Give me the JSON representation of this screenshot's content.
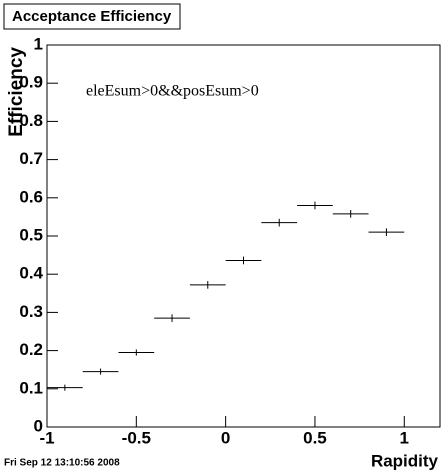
{
  "chart_data": {
    "type": "histogram",
    "title": "Acceptance Efficiency",
    "x_label": "Rapidity",
    "y_label": "Efficiency",
    "annotation": "eleEsum>0&&posEsum>0",
    "footer": "Fri Sep 12 13:10:56 2008",
    "bins": [
      -1,
      -0.8,
      -0.6,
      -0.4,
      -0.2,
      0,
      0.2,
      0.4,
      0.6,
      0.8,
      1
    ],
    "values": [
      0.103,
      0.145,
      0.195,
      0.285,
      0.372,
      0.436,
      0.535,
      0.58,
      0.558,
      0.51
    ],
    "errors": [
      0.008,
      0.008,
      0.008,
      0.01,
      0.01,
      0.01,
      0.01,
      0.01,
      0.01,
      0.01
    ],
    "color": "#000000",
    "xlim": [
      -1,
      1.2
    ],
    "ylim": [
      0,
      1
    ],
    "xticks": [
      -1,
      -0.5,
      0,
      0.5,
      1
    ],
    "yticks": [
      0,
      0.1,
      0.2,
      0.3,
      0.4,
      0.5,
      0.6,
      0.7,
      0.8,
      0.9,
      1
    ]
  }
}
